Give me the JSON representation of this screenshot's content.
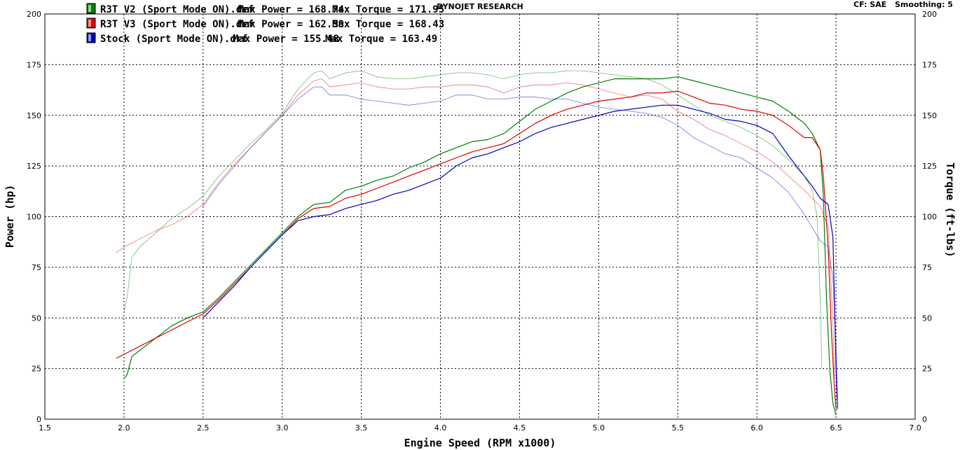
{
  "header": {
    "title": "DYNOJET RESEARCH",
    "correction": "CF: SAE",
    "smoothing": "Smoothing: 5"
  },
  "chart_data": {
    "type": "line",
    "xlabel": "Engine Speed (RPM x1000)",
    "ylabel": "Power (hp)",
    "y2label": "Torque (ft-lbs)",
    "xlim": [
      1.5,
      7.0
    ],
    "ylim": [
      0,
      200
    ],
    "y2lim": [
      0,
      200
    ],
    "x_ticks": [
      "1.5",
      "2.0",
      "2.5",
      "3.0",
      "3.5",
      "4.0",
      "4.5",
      "5.0",
      "5.5",
      "6.0",
      "6.5",
      "7.0"
    ],
    "y_ticks": [
      "0",
      "25",
      "50",
      "75",
      "100",
      "125",
      "150",
      "175",
      "200"
    ],
    "grid": true,
    "legend_position": "top-left",
    "legend": [
      {
        "name": "R3T V2 (Sport Mode ON).drf",
        "max_power": "Max Power = 168.74",
        "max_torque": "Max Torque = 171.95",
        "color": "#008000"
      },
      {
        "name": "R3T V3 (Sport Mode ON).drf",
        "max_power": "Max Power = 162.59",
        "max_torque": "Max Torque = 168.43",
        "color": "#e00000"
      },
      {
        "name": "Stock (Sport Mode ON).drf",
        "max_power": "Max Power = 155.48",
        "max_torque": "Max Torque = 163.49",
        "color": "#0000c0"
      }
    ],
    "series": [
      {
        "name": "R3T V2 (Sport Mode ON).drf",
        "measure": "power",
        "color": "#008000",
        "points": [
          [
            2.0,
            20
          ],
          [
            2.02,
            22
          ],
          [
            2.05,
            31
          ],
          [
            2.1,
            34
          ],
          [
            2.2,
            40
          ],
          [
            2.3,
            46
          ],
          [
            2.4,
            50
          ],
          [
            2.5,
            53
          ],
          [
            2.6,
            60
          ],
          [
            2.7,
            68
          ],
          [
            2.8,
            76
          ],
          [
            2.9,
            84
          ],
          [
            3.0,
            92
          ],
          [
            3.1,
            100
          ],
          [
            3.2,
            106
          ],
          [
            3.3,
            107
          ],
          [
            3.4,
            113
          ],
          [
            3.5,
            115
          ],
          [
            3.6,
            118
          ],
          [
            3.7,
            120
          ],
          [
            3.8,
            124
          ],
          [
            3.9,
            127
          ],
          [
            4.0,
            131
          ],
          [
            4.1,
            134
          ],
          [
            4.2,
            137
          ],
          [
            4.3,
            138
          ],
          [
            4.4,
            141
          ],
          [
            4.5,
            147
          ],
          [
            4.6,
            153
          ],
          [
            4.7,
            157
          ],
          [
            4.8,
            161
          ],
          [
            4.9,
            164
          ],
          [
            5.0,
            166
          ],
          [
            5.1,
            168
          ],
          [
            5.2,
            168
          ],
          [
            5.3,
            168
          ],
          [
            5.4,
            168
          ],
          [
            5.5,
            169
          ],
          [
            5.6,
            167
          ],
          [
            5.7,
            165
          ],
          [
            5.8,
            163
          ],
          [
            5.9,
            161
          ],
          [
            6.0,
            159
          ],
          [
            6.1,
            157
          ],
          [
            6.2,
            152
          ],
          [
            6.3,
            146
          ],
          [
            6.35,
            141
          ],
          [
            6.4,
            133
          ],
          [
            6.42,
            110
          ],
          [
            6.44,
            60
          ],
          [
            6.46,
            25
          ],
          [
            6.48,
            8
          ],
          [
            6.5,
            2
          ]
        ]
      },
      {
        "name": "R3T V3 (Sport Mode ON).drf",
        "measure": "power",
        "color": "#e00000",
        "points": [
          [
            1.95,
            30
          ],
          [
            2.0,
            32
          ],
          [
            2.1,
            36
          ],
          [
            2.2,
            40
          ],
          [
            2.3,
            44
          ],
          [
            2.4,
            48
          ],
          [
            2.5,
            52
          ],
          [
            2.6,
            59
          ],
          [
            2.7,
            67
          ],
          [
            2.8,
            75
          ],
          [
            2.9,
            83
          ],
          [
            3.0,
            91
          ],
          [
            3.1,
            99
          ],
          [
            3.2,
            104
          ],
          [
            3.3,
            105
          ],
          [
            3.4,
            109
          ],
          [
            3.5,
            111
          ],
          [
            3.6,
            114
          ],
          [
            3.7,
            117
          ],
          [
            3.8,
            120
          ],
          [
            3.9,
            123
          ],
          [
            4.0,
            126
          ],
          [
            4.1,
            129
          ],
          [
            4.2,
            132
          ],
          [
            4.3,
            134
          ],
          [
            4.4,
            136
          ],
          [
            4.5,
            141
          ],
          [
            4.6,
            146
          ],
          [
            4.7,
            150
          ],
          [
            4.8,
            153
          ],
          [
            4.9,
            155
          ],
          [
            5.0,
            157
          ],
          [
            5.1,
            158
          ],
          [
            5.2,
            159
          ],
          [
            5.3,
            161
          ],
          [
            5.4,
            161
          ],
          [
            5.5,
            162
          ],
          [
            5.6,
            159
          ],
          [
            5.7,
            156
          ],
          [
            5.8,
            155
          ],
          [
            5.9,
            153
          ],
          [
            6.0,
            152
          ],
          [
            6.1,
            150
          ],
          [
            6.2,
            145
          ],
          [
            6.3,
            139
          ],
          [
            6.35,
            139
          ],
          [
            6.4,
            133
          ],
          [
            6.42,
            120
          ],
          [
            6.45,
            85
          ],
          [
            6.47,
            45
          ],
          [
            6.49,
            15
          ],
          [
            6.5,
            5
          ]
        ]
      },
      {
        "name": "Stock (Sport Mode ON).drf",
        "measure": "power",
        "color": "#0000c0",
        "points": [
          [
            2.5,
            50
          ],
          [
            2.6,
            58
          ],
          [
            2.7,
            66
          ],
          [
            2.8,
            75
          ],
          [
            2.9,
            83
          ],
          [
            3.0,
            91
          ],
          [
            3.1,
            98
          ],
          [
            3.2,
            100
          ],
          [
            3.3,
            101
          ],
          [
            3.4,
            104
          ],
          [
            3.5,
            106
          ],
          [
            3.6,
            108
          ],
          [
            3.7,
            111
          ],
          [
            3.8,
            113
          ],
          [
            3.9,
            116
          ],
          [
            4.0,
            119
          ],
          [
            4.1,
            125
          ],
          [
            4.2,
            129
          ],
          [
            4.3,
            131
          ],
          [
            4.4,
            134
          ],
          [
            4.5,
            137
          ],
          [
            4.6,
            141
          ],
          [
            4.7,
            144
          ],
          [
            4.8,
            146
          ],
          [
            4.9,
            148
          ],
          [
            5.0,
            150
          ],
          [
            5.1,
            152
          ],
          [
            5.2,
            153
          ],
          [
            5.3,
            154
          ],
          [
            5.4,
            155
          ],
          [
            5.5,
            155
          ],
          [
            5.6,
            153
          ],
          [
            5.7,
            151
          ],
          [
            5.8,
            148
          ],
          [
            5.9,
            147
          ],
          [
            6.0,
            145
          ],
          [
            6.1,
            141
          ],
          [
            6.2,
            130
          ],
          [
            6.3,
            120
          ],
          [
            6.35,
            115
          ],
          [
            6.4,
            109
          ],
          [
            6.45,
            106
          ],
          [
            6.48,
            90
          ],
          [
            6.49,
            60
          ],
          [
            6.5,
            25
          ],
          [
            6.51,
            5
          ]
        ]
      },
      {
        "name": "R3T V2 (Sport Mode ON).drf",
        "measure": "torque",
        "color": "#008000",
        "points": [
          [
            2.0,
            53
          ],
          [
            2.02,
            60
          ],
          [
            2.05,
            80
          ],
          [
            2.1,
            85
          ],
          [
            2.2,
            92
          ],
          [
            2.3,
            99
          ],
          [
            2.4,
            104
          ],
          [
            2.5,
            110
          ],
          [
            2.6,
            120
          ],
          [
            2.7,
            128
          ],
          [
            2.8,
            136
          ],
          [
            2.9,
            143
          ],
          [
            3.0,
            151
          ],
          [
            3.1,
            163
          ],
          [
            3.2,
            171
          ],
          [
            3.25,
            172
          ],
          [
            3.3,
            168
          ],
          [
            3.4,
            171
          ],
          [
            3.5,
            172
          ],
          [
            3.6,
            169
          ],
          [
            3.7,
            168
          ],
          [
            3.8,
            168
          ],
          [
            3.9,
            169
          ],
          [
            4.0,
            170
          ],
          [
            4.1,
            171
          ],
          [
            4.2,
            171
          ],
          [
            4.3,
            170
          ],
          [
            4.4,
            168
          ],
          [
            4.5,
            170
          ],
          [
            4.6,
            171
          ],
          [
            4.7,
            171
          ],
          [
            4.8,
            172
          ],
          [
            4.9,
            172
          ],
          [
            5.0,
            171
          ],
          [
            5.1,
            170
          ],
          [
            5.2,
            169
          ],
          [
            5.3,
            168
          ],
          [
            5.4,
            165
          ],
          [
            5.5,
            160
          ],
          [
            5.6,
            155
          ],
          [
            5.7,
            150
          ],
          [
            5.8,
            147
          ],
          [
            5.9,
            144
          ],
          [
            6.0,
            140
          ],
          [
            6.1,
            135
          ],
          [
            6.2,
            128
          ],
          [
            6.3,
            120
          ],
          [
            6.35,
            113
          ],
          [
            6.38,
            100
          ],
          [
            6.4,
            60
          ],
          [
            6.41,
            25
          ]
        ]
      },
      {
        "name": "R3T V3 (Sport Mode ON).drf",
        "measure": "torque",
        "color": "#e00000",
        "points": [
          [
            1.95,
            82
          ],
          [
            2.0,
            85
          ],
          [
            2.1,
            89
          ],
          [
            2.2,
            93
          ],
          [
            2.3,
            96
          ],
          [
            2.4,
            100
          ],
          [
            2.5,
            106
          ],
          [
            2.6,
            117
          ],
          [
            2.7,
            126
          ],
          [
            2.8,
            134
          ],
          [
            2.9,
            142
          ],
          [
            3.0,
            150
          ],
          [
            3.1,
            160
          ],
          [
            3.2,
            167
          ],
          [
            3.25,
            168
          ],
          [
            3.3,
            164
          ],
          [
            3.4,
            165
          ],
          [
            3.5,
            166
          ],
          [
            3.6,
            164
          ],
          [
            3.7,
            163
          ],
          [
            3.8,
            163
          ],
          [
            3.9,
            164
          ],
          [
            4.0,
            164
          ],
          [
            4.1,
            165
          ],
          [
            4.2,
            165
          ],
          [
            4.3,
            164
          ],
          [
            4.4,
            161
          ],
          [
            4.5,
            164
          ],
          [
            4.6,
            165
          ],
          [
            4.7,
            165
          ],
          [
            4.8,
            166
          ],
          [
            4.9,
            165
          ],
          [
            5.0,
            163
          ],
          [
            5.1,
            161
          ],
          [
            5.2,
            159
          ],
          [
            5.3,
            160
          ],
          [
            5.4,
            158
          ],
          [
            5.5,
            152
          ],
          [
            5.6,
            148
          ],
          [
            5.7,
            143
          ],
          [
            5.8,
            140
          ],
          [
            5.9,
            136
          ],
          [
            6.0,
            132
          ],
          [
            6.1,
            127
          ],
          [
            6.2,
            120
          ],
          [
            6.3,
            113
          ],
          [
            6.4,
            105
          ],
          [
            6.45,
            95
          ],
          [
            6.48,
            50
          ],
          [
            6.49,
            20
          ]
        ]
      },
      {
        "name": "Stock (Sport Mode ON).drf",
        "measure": "torque",
        "color": "#0000c0",
        "points": [
          [
            2.5,
            105
          ],
          [
            2.6,
            116
          ],
          [
            2.7,
            125
          ],
          [
            2.8,
            134
          ],
          [
            2.9,
            142
          ],
          [
            3.0,
            150
          ],
          [
            3.1,
            158
          ],
          [
            3.2,
            164
          ],
          [
            3.25,
            164
          ],
          [
            3.3,
            160
          ],
          [
            3.4,
            160
          ],
          [
            3.5,
            158
          ],
          [
            3.6,
            157
          ],
          [
            3.7,
            156
          ],
          [
            3.8,
            155
          ],
          [
            3.9,
            156
          ],
          [
            4.0,
            157
          ],
          [
            4.1,
            160
          ],
          [
            4.2,
            160
          ],
          [
            4.3,
            158
          ],
          [
            4.4,
            158
          ],
          [
            4.5,
            159
          ],
          [
            4.6,
            159
          ],
          [
            4.7,
            158
          ],
          [
            4.8,
            158
          ],
          [
            4.9,
            156
          ],
          [
            5.0,
            154
          ],
          [
            5.1,
            153
          ],
          [
            5.2,
            152
          ],
          [
            5.3,
            151
          ],
          [
            5.4,
            149
          ],
          [
            5.5,
            145
          ],
          [
            5.6,
            139
          ],
          [
            5.7,
            135
          ],
          [
            5.8,
            131
          ],
          [
            5.9,
            129
          ],
          [
            6.0,
            124
          ],
          [
            6.1,
            119
          ],
          [
            6.2,
            112
          ],
          [
            6.3,
            101
          ],
          [
            6.4,
            88
          ],
          [
            6.45,
            85
          ],
          [
            6.48,
            70
          ],
          [
            6.5,
            35
          ],
          [
            6.51,
            10
          ]
        ]
      }
    ]
  }
}
